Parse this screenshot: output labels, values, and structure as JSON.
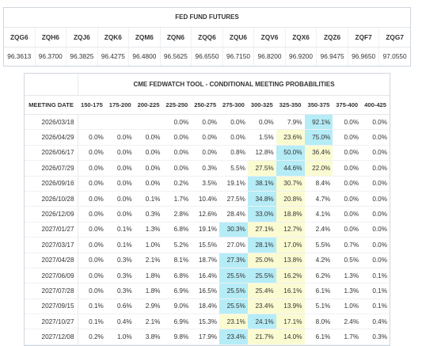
{
  "futures": {
    "title": "FED FUND FUTURES",
    "contracts": [
      "ZQG6",
      "ZQH6",
      "ZQJ6",
      "ZQK6",
      "ZQM6",
      "ZQN6",
      "ZQQ6",
      "ZQU6",
      "ZQV6",
      "ZQX6",
      "ZQZ6",
      "ZQF7",
      "ZQG7"
    ],
    "prices": [
      "96.3613",
      "96.3700",
      "96.3825",
      "96.4275",
      "96.4800",
      "96.5625",
      "96.6550",
      "96.7150",
      "96.8200",
      "96.9200",
      "96.9475",
      "96.9650",
      "97.0550"
    ]
  },
  "probabilities": {
    "title": "CME FEDWATCH TOOL - CONDITIONAL MEETING PROBABILITIES",
    "date_header": "MEETING DATE",
    "ranges": [
      "150-175",
      "175-200",
      "200-225",
      "225-250",
      "250-275",
      "275-300",
      "300-325",
      "325-350",
      "350-375",
      "375-400",
      "400-425"
    ],
    "highlight_colors": {
      "cyan": "#b5ecf6",
      "yellow": "#fbfbd2"
    },
    "rows": [
      {
        "date": "2026/03/18",
        "values": [
          "",
          "",
          "",
          "0.0%",
          "0.0%",
          "0.0%",
          "0.0%",
          "7.9%",
          "92.1%",
          "0.0%",
          "0.0%"
        ],
        "cyan": [
          8
        ],
        "yellow": []
      },
      {
        "date": "2026/04/29",
        "values": [
          "0.0%",
          "0.0%",
          "0.0%",
          "0.0%",
          "0.0%",
          "0.0%",
          "1.5%",
          "23.6%",
          "75.0%",
          "0.0%",
          "0.0%"
        ],
        "cyan": [
          8
        ],
        "yellow": [
          7
        ]
      },
      {
        "date": "2026/06/17",
        "values": [
          "0.0%",
          "0.0%",
          "0.0%",
          "0.0%",
          "0.0%",
          "0.8%",
          "12.8%",
          "50.0%",
          "36.4%",
          "0.0%",
          "0.0%"
        ],
        "cyan": [
          7
        ],
        "yellow": [
          8
        ]
      },
      {
        "date": "2026/07/29",
        "values": [
          "0.0%",
          "0.0%",
          "0.0%",
          "0.0%",
          "0.3%",
          "5.5%",
          "27.5%",
          "44.6%",
          "22.0%",
          "0.0%",
          "0.0%"
        ],
        "cyan": [
          7
        ],
        "yellow": [
          6,
          8
        ]
      },
      {
        "date": "2026/09/16",
        "values": [
          "0.0%",
          "0.0%",
          "0.0%",
          "0.2%",
          "3.5%",
          "19.1%",
          "38.1%",
          "30.7%",
          "8.4%",
          "0.0%",
          "0.0%"
        ],
        "cyan": [
          6
        ],
        "yellow": [
          7
        ]
      },
      {
        "date": "2026/10/28",
        "values": [
          "0.0%",
          "0.0%",
          "0.1%",
          "1.7%",
          "10.4%",
          "27.5%",
          "34.8%",
          "20.8%",
          "4.7%",
          "0.0%",
          "0.0%"
        ],
        "cyan": [
          6
        ],
        "yellow": [
          7
        ]
      },
      {
        "date": "2026/12/09",
        "values": [
          "0.0%",
          "0.0%",
          "0.3%",
          "2.8%",
          "12.6%",
          "28.4%",
          "33.0%",
          "18.8%",
          "4.1%",
          "0.0%",
          "0.0%"
        ],
        "cyan": [
          6
        ],
        "yellow": [
          7
        ]
      },
      {
        "date": "2027/01/27",
        "values": [
          "0.0%",
          "0.1%",
          "1.3%",
          "6.8%",
          "19.1%",
          "30.3%",
          "27.1%",
          "12.7%",
          "2.4%",
          "0.0%",
          "0.0%"
        ],
        "cyan": [
          5
        ],
        "yellow": [
          6,
          7
        ]
      },
      {
        "date": "2027/03/17",
        "values": [
          "0.0%",
          "0.1%",
          "1.0%",
          "5.2%",
          "15.5%",
          "27.0%",
          "28.1%",
          "17.0%",
          "5.5%",
          "0.7%",
          "0.0%"
        ],
        "cyan": [
          6
        ],
        "yellow": [
          7
        ]
      },
      {
        "date": "2027/04/28",
        "values": [
          "0.0%",
          "0.3%",
          "2.1%",
          "8.1%",
          "18.7%",
          "27.3%",
          "25.0%",
          "13.8%",
          "4.2%",
          "0.5%",
          "0.0%"
        ],
        "cyan": [
          5
        ],
        "yellow": [
          6,
          7
        ]
      },
      {
        "date": "2027/06/09",
        "values": [
          "0.0%",
          "0.3%",
          "1.8%",
          "6.8%",
          "16.4%",
          "25.5%",
          "25.5%",
          "16.2%",
          "6.2%",
          "1.3%",
          "0.1%"
        ],
        "cyan": [
          5,
          6
        ],
        "yellow": [
          7
        ]
      },
      {
        "date": "2027/07/28",
        "values": [
          "0.0%",
          "0.3%",
          "1.8%",
          "6.9%",
          "16.5%",
          "25.5%",
          "25.4%",
          "16.1%",
          "6.1%",
          "1.3%",
          "0.1%"
        ],
        "cyan": [
          5
        ],
        "yellow": [
          6,
          7
        ]
      },
      {
        "date": "2027/09/15",
        "values": [
          "0.1%",
          "0.6%",
          "2.9%",
          "9.0%",
          "18.4%",
          "25.5%",
          "23.4%",
          "13.9%",
          "5.1%",
          "1.0%",
          "0.1%"
        ],
        "cyan": [
          5
        ],
        "yellow": [
          6,
          7
        ]
      },
      {
        "date": "2027/10/27",
        "values": [
          "0.1%",
          "0.4%",
          "2.1%",
          "6.9%",
          "15.3%",
          "23.1%",
          "24.1%",
          "17.1%",
          "8.0%",
          "2.4%",
          "0.4%"
        ],
        "cyan": [
          6
        ],
        "yellow": [
          5,
          7
        ]
      },
      {
        "date": "2027/12/08",
        "values": [
          "0.2%",
          "1.0%",
          "3.8%",
          "9.8%",
          "17.9%",
          "23.4%",
          "21.7%",
          "14.0%",
          "6.1%",
          "1.7%",
          "0.3%"
        ],
        "cyan": [
          5
        ],
        "yellow": [
          6,
          7
        ]
      }
    ]
  }
}
